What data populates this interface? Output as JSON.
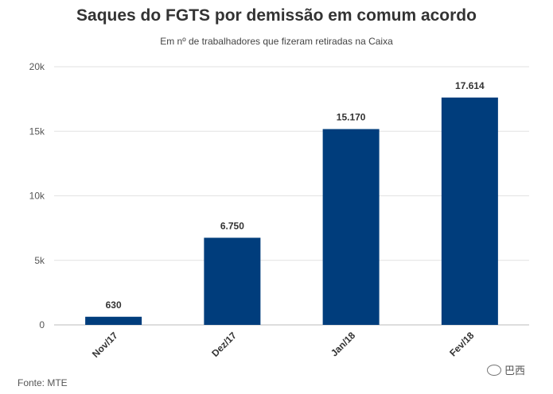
{
  "chart_data": {
    "type": "bar",
    "title": "Saques do FGTS por demissão em comum acordo",
    "subtitle": "Em nº de trabalhadores que fizeram retiradas na Caixa",
    "categories": [
      "Nov/17",
      "Dez/17",
      "Jan/18",
      "Fev/18"
    ],
    "values": [
      630,
      6750,
      15170,
      17614
    ],
    "data_labels": [
      "630",
      "6.750",
      "15.170",
      "17.614"
    ],
    "ylim": [
      0,
      20000
    ],
    "yticks": [
      0,
      5000,
      10000,
      15000,
      20000
    ],
    "ytick_labels": [
      "0",
      "5k",
      "10k",
      "15k",
      "20k"
    ],
    "xlabel": "",
    "ylabel": "",
    "grid": true,
    "bar_color": "#003d7c"
  },
  "source": "Fonte: MTE",
  "watermark": "巴西"
}
